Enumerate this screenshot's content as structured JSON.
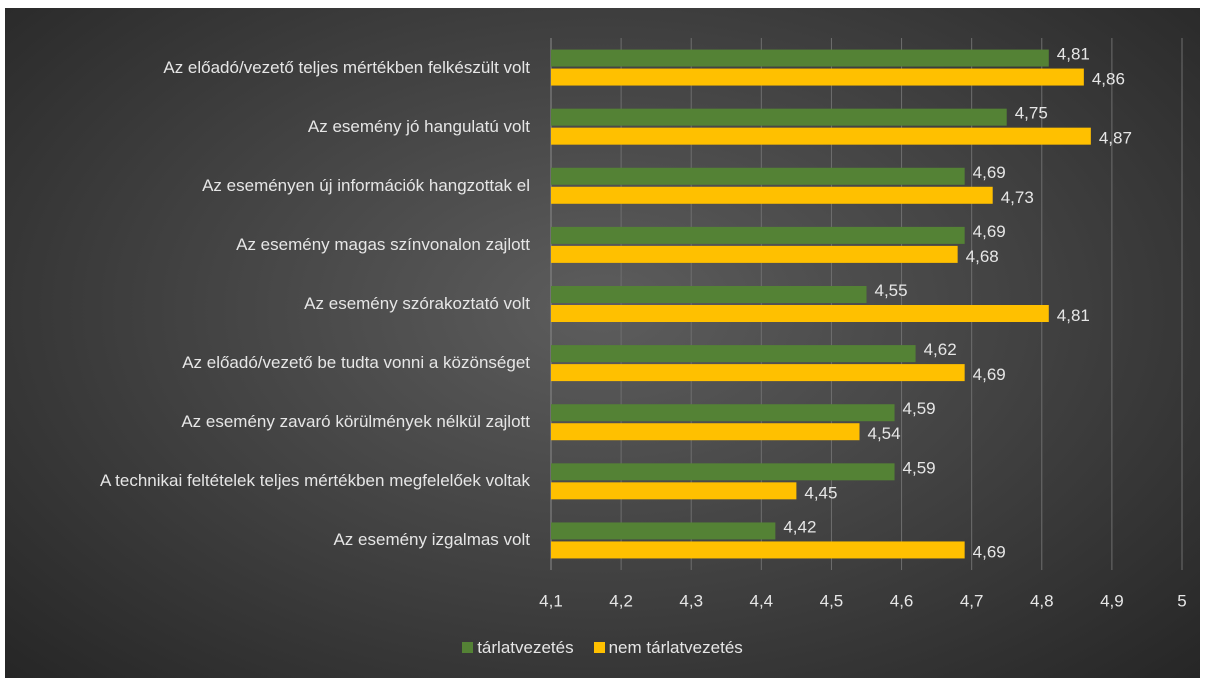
{
  "chart_data": {
    "type": "bar",
    "orientation": "horizontal",
    "categories": [
      "Az előadó/vezető teljes mértékben felkészült volt",
      "Az esemény jó hangulatú volt",
      "Az eseményen új információk hangzottak el",
      "Az esemény magas színvonalon zajlott",
      "Az esemény szórakoztató volt",
      "Az előadó/vezető be tudta vonni a közönséget",
      "Az esemény zavaró körülmények nélkül zajlott",
      "A technikai feltételek teljes mértékben megfelelőek voltak",
      "Az esemény izgalmas volt"
    ],
    "series": [
      {
        "name": "tárlatvezetés",
        "color": "#548235",
        "values": [
          4.81,
          4.75,
          4.69,
          4.69,
          4.55,
          4.62,
          4.59,
          4.59,
          4.42
        ],
        "value_labels": [
          "4,81",
          "4,75",
          "4,69",
          "4,69",
          "4,55",
          "4,62",
          "4,59",
          "4,59",
          "4,42"
        ]
      },
      {
        "name": "nem tárlatvezetés",
        "color": "#ffc000",
        "values": [
          4.86,
          4.87,
          4.73,
          4.68,
          4.81,
          4.69,
          4.54,
          4.45,
          4.69
        ],
        "value_labels": [
          "4,86",
          "4,87",
          "4,73",
          "4,68",
          "4,81",
          "4,69",
          "4,54",
          "4,45",
          "4,69"
        ]
      }
    ],
    "xlim": [
      4.1,
      5
    ],
    "xticks": [
      {
        "value": 4.1,
        "label": "4,1"
      },
      {
        "value": 4.2,
        "label": "4,2"
      },
      {
        "value": 4.3,
        "label": "4,3"
      },
      {
        "value": 4.4,
        "label": "4,4"
      },
      {
        "value": 4.5,
        "label": "4,5"
      },
      {
        "value": 4.6,
        "label": "4,6"
      },
      {
        "value": 4.7,
        "label": "4,7"
      },
      {
        "value": 4.8,
        "label": "4,8"
      },
      {
        "value": 4.9,
        "label": "4,9"
      },
      5
    ],
    "grid": true,
    "legend": "bottom"
  }
}
